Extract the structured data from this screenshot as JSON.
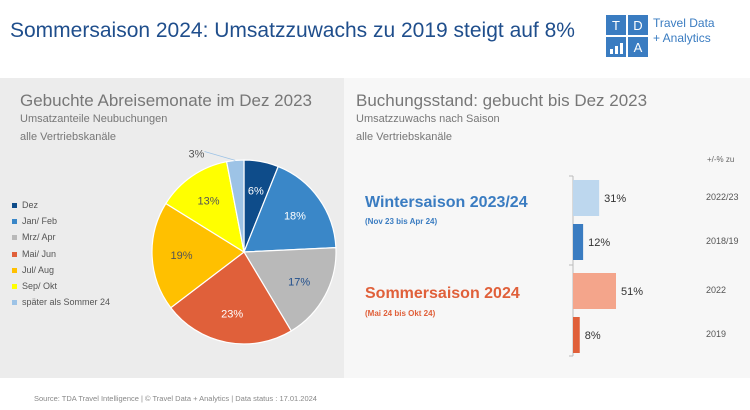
{
  "title": "Sommersaison 2024: Umsatzzuwachs zu 2019 steigt auf 8%",
  "logo": {
    "letters": [
      "T",
      "D",
      "A"
    ],
    "line1": "Travel Data",
    "line2": "+ Analytics",
    "color": "#3a7cc1"
  },
  "left_panel": {
    "title": "Gebuchte Abreisemonate im Dez 2023",
    "subtitle1": "Umsatzanteile Neubuchungen",
    "subtitle2": "alle Vertriebskanäle"
  },
  "right_panel": {
    "title": "Buchungsstand: gebucht bis Dez 2023",
    "subtitle1": "Umsatzzuwachs nach Saison",
    "subtitle2": "alle Vertriebskanäle",
    "col_header": "+/-% zu",
    "winter": {
      "title": "Wintersaison 2023/24",
      "sub": "(Nov 23 bis Apr 24)",
      "color": "#3a7cc1"
    },
    "summer": {
      "title": "Sommersaison 2024",
      "sub": "(Mai 24 bis Okt 24)",
      "color": "#e0603a"
    }
  },
  "footer": "Source: TDA Travel Intelligence   |   © Travel Data + Analytics   | Data status : 17.01.2024",
  "chart_data": [
    {
      "type": "pie",
      "title": "Gebuchte Abreisemonate im Dez 2023",
      "categories": [
        "Dez",
        "Jan/ Feb",
        "Mrz/ Apr",
        "Mai/ Jun",
        "Jul/ Aug",
        "Sep/ Okt",
        "später als Sommer 24"
      ],
      "values": [
        6,
        18,
        17,
        23,
        19,
        13,
        3
      ],
      "labels": [
        "6%",
        "18%",
        "17%",
        "23%",
        "19%",
        "13%",
        "3%"
      ],
      "colors": [
        "#0e4c8a",
        "#3a87c8",
        "#b9b9b9",
        "#e0603a",
        "#ffc000",
        "#ffff00",
        "#9dc3e6"
      ],
      "label_colors": [
        "#ffffff",
        "#ffffff",
        "#1f4e8c",
        "#ffffff",
        "#555555",
        "#555555",
        "#555555"
      ],
      "legend_placement": "left"
    },
    {
      "type": "bar",
      "orientation": "horizontal",
      "title": "Buchungsstand: gebucht bis Dez 2023",
      "categories": [
        "2022/23",
        "2018/19",
        "2022",
        "2019"
      ],
      "values": [
        31,
        12,
        51,
        8
      ],
      "labels": [
        "31%",
        "12%",
        "51%",
        "8%"
      ],
      "colors": [
        "#bdd7ee",
        "#3a7cc1",
        "#f4a58b",
        "#e0603a"
      ],
      "groups": [
        "Wintersaison 2023/24",
        "Wintersaison 2023/24",
        "Sommersaison 2024",
        "Sommersaison 2024"
      ],
      "xlim": [
        0,
        60
      ],
      "grid": false
    }
  ]
}
